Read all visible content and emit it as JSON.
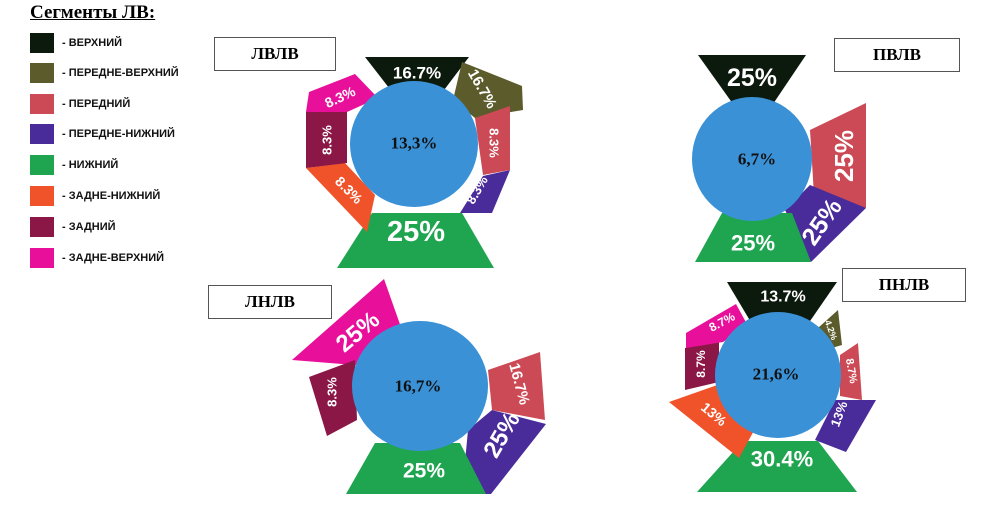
{
  "legend": {
    "title": "Сегменты ЛВ:",
    "items": [
      {
        "label": "- ВЕРХНИЙ",
        "color": "#0c1a0e"
      },
      {
        "label": "- ПЕРЕДНЕ-ВЕРХНИЙ",
        "color": "#5b5b2c"
      },
      {
        "label": "-  ПЕРЕДНИЙ",
        "color": "#cc4a55"
      },
      {
        "label": "- ПЕРЕДНЕ-НИЖНИЙ",
        "color": "#4a2b9a"
      },
      {
        "label": "- НИЖНИЙ",
        "color": "#1fa550"
      },
      {
        "label": "- ЗАДНЕ-НИЖНИЙ",
        "color": "#f0522a"
      },
      {
        "label": "- ЗАДНИЙ",
        "color": "#8a1746"
      },
      {
        "label": "- ЗАДНЕ-ВЕРХНИЙ",
        "color": "#e8109a"
      }
    ]
  },
  "circle_color": "#3a91d6",
  "diagrams": {
    "lvlv": {
      "name": "ЛВЛВ",
      "center": "13,3%",
      "segments": {
        "superior": "16.7%",
        "anterosuperior": "16.7%",
        "anterior": "8.3%",
        "anteroinferior": "8.3%",
        "inferior": "25%",
        "posteroinferior": "8.3%",
        "posterior": "8.3%",
        "posterosuperior": "8.3%"
      }
    },
    "pvlv": {
      "name": "ПВЛВ",
      "center": "6,7%",
      "segments": {
        "superior": "25%",
        "anterior": "25%",
        "anteroinferior": "25%",
        "inferior": "25%"
      }
    },
    "lnlv": {
      "name": "ЛНЛВ",
      "center": "16,7%",
      "segments": {
        "posterosuperior": "25%",
        "posterior": "8.3%",
        "anterior": "16.7%",
        "anteroinferior": "25%",
        "inferior": "25%"
      }
    },
    "pnlv": {
      "name": "ПНЛВ",
      "center": "21,6%",
      "segments": {
        "superior": "13.7%",
        "anterosuperior": "4.2%",
        "anterior": "8.7%",
        "anteroinferior": "13%",
        "inferior": "30.4%",
        "posteroinferior": "13%",
        "posterior": "8.7%",
        "posterosuperior": "8.7%"
      }
    }
  }
}
